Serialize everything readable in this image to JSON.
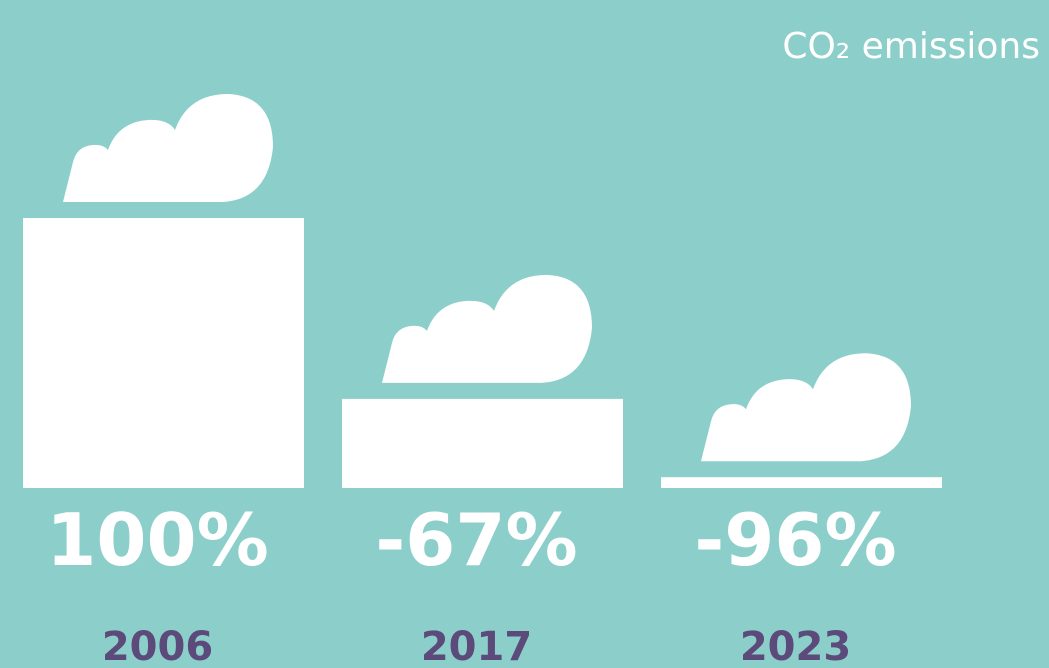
{
  "chart_data": {
    "type": "bar",
    "baseline": "first",
    "title": "CO₂ emissions",
    "categories": [
      "2006",
      "2017",
      "2023"
    ],
    "values": [
      100,
      -67,
      -96
    ],
    "value_labels": [
      "100%",
      "-67%",
      "-96%"
    ],
    "ylim": [
      0,
      100
    ],
    "color": "#ffffff",
    "background": "#8ccfca",
    "category_color": "#5b4a7a"
  }
}
